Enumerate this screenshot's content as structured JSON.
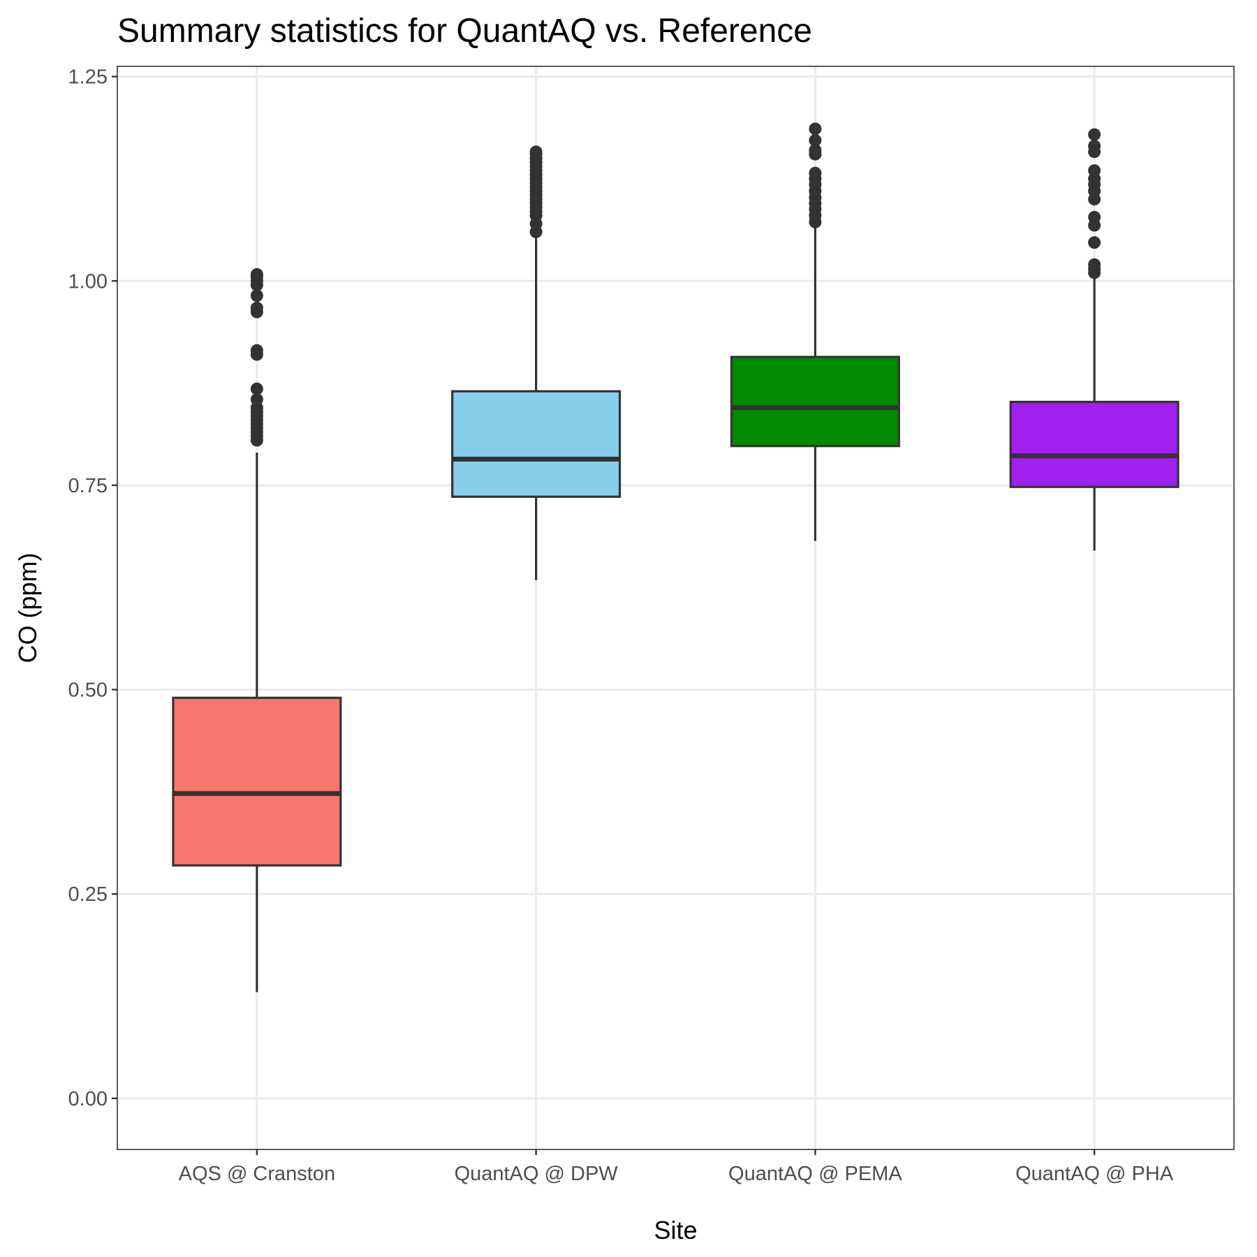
{
  "chart_data": {
    "type": "box",
    "title": "Summary statistics for QuantAQ vs. Reference",
    "xlabel": "Site",
    "ylabel": "CO (ppm)",
    "ylim": [
      -0.0625,
      1.2625
    ],
    "yticks": [
      0.0,
      0.25,
      0.5,
      0.75,
      1.0,
      1.25
    ],
    "ytick_labels": [
      "0.00",
      "0.25",
      "0.50",
      "0.75",
      "1.00",
      "1.25"
    ],
    "grid": true,
    "categories": [
      "AQS @ Cranston",
      "QuantAQ @ DPW",
      "QuantAQ @ PEMA",
      "QuantAQ @ PHA"
    ],
    "boxes": [
      {
        "category": "AQS @ Cranston",
        "color": "#F8766D",
        "whisker_low": 0.13,
        "q1": 0.285,
        "median": 0.373,
        "q3": 0.49,
        "whisker_high": 0.79,
        "outliers": [
          0.805,
          0.81,
          0.815,
          0.82,
          0.825,
          0.83,
          0.835,
          0.84,
          0.845,
          0.855,
          0.868,
          0.91,
          0.915,
          0.962,
          0.967,
          0.982,
          0.995,
          1.0,
          1.005,
          1.008
        ]
      },
      {
        "category": "QuantAQ @ DPW",
        "color": "#87CEEB",
        "whisker_low": 0.634,
        "q1": 0.736,
        "median": 0.782,
        "q3": 0.865,
        "whisker_high": 1.055,
        "outliers": [
          1.06,
          1.07,
          1.08,
          1.085,
          1.09,
          1.095,
          1.1,
          1.105,
          1.11,
          1.115,
          1.12,
          1.125,
          1.13,
          1.135,
          1.14,
          1.145,
          1.15,
          1.155,
          1.158
        ]
      },
      {
        "category": "QuantAQ @ PEMA",
        "color": "#008B00",
        "whisker_low": 0.682,
        "q1": 0.798,
        "median": 0.845,
        "q3": 0.907,
        "whisker_high": 1.068,
        "outliers": [
          1.072,
          1.08,
          1.088,
          1.095,
          1.102,
          1.11,
          1.118,
          1.125,
          1.132,
          1.155,
          1.16,
          1.172,
          1.186
        ]
      },
      {
        "category": "QuantAQ @ PHA",
        "color": "#A020F0",
        "whisker_low": 0.67,
        "q1": 0.748,
        "median": 0.786,
        "q3": 0.852,
        "whisker_high": 1.005,
        "outliers": [
          1.01,
          1.015,
          1.02,
          1.047,
          1.068,
          1.078,
          1.1,
          1.11,
          1.118,
          1.125,
          1.135,
          1.158,
          1.165,
          1.179
        ]
      }
    ]
  }
}
